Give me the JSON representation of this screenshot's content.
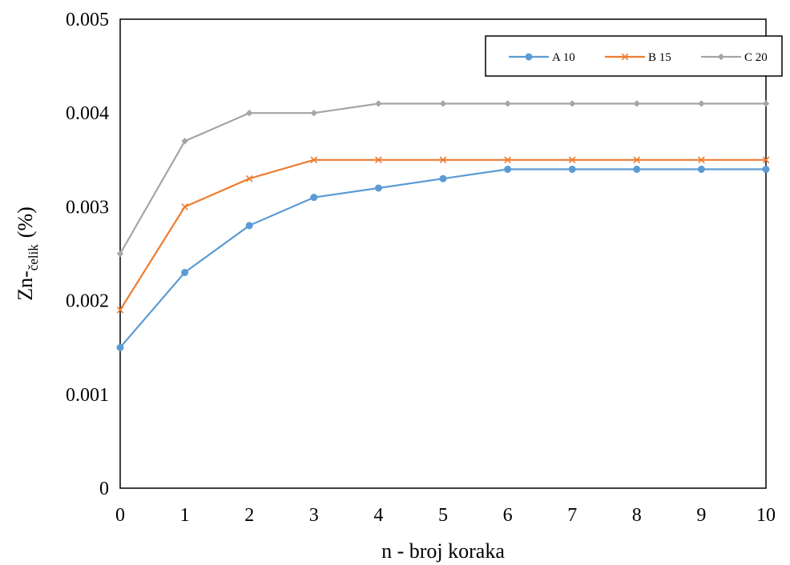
{
  "chart_data": {
    "type": "line",
    "x": [
      0,
      1,
      2,
      3,
      4,
      5,
      6,
      7,
      8,
      9,
      10
    ],
    "xlim": [
      0,
      10
    ],
    "ylim": [
      0,
      0.005
    ],
    "x_ticks": [
      "0",
      "1",
      "2",
      "3",
      "4",
      "5",
      "6",
      "7",
      "8",
      "9",
      "10"
    ],
    "y_ticks": [
      "0",
      "0.001",
      "0.002",
      "0.003",
      "0.004",
      "0.005"
    ],
    "xlabel": "n - broj koraka",
    "ylabel_main": "Zn-",
    "ylabel_sub": "čelik",
    "ylabel_unit": "(%)",
    "grid": false,
    "legend_position": "top-right",
    "series": [
      {
        "name": "A 10",
        "color": "#5b9bd5",
        "marker": "circle",
        "values": [
          0.0015,
          0.0023,
          0.0028,
          0.0031,
          0.0032,
          0.0033,
          0.0034,
          0.0034,
          0.0034,
          0.0034,
          0.0034
        ]
      },
      {
        "name": "B 15",
        "color": "#ed7d31",
        "marker": "x",
        "values": [
          0.0019,
          0.003,
          0.0033,
          0.0035,
          0.0035,
          0.0035,
          0.0035,
          0.0035,
          0.0035,
          0.0035,
          0.0035
        ]
      },
      {
        "name": "C 20",
        "color": "#a5a5a5",
        "marker": "diamond",
        "values": [
          0.0025,
          0.0037,
          0.004,
          0.004,
          0.0041,
          0.0041,
          0.0041,
          0.0041,
          0.0041,
          0.0041,
          0.0041
        ]
      }
    ]
  }
}
